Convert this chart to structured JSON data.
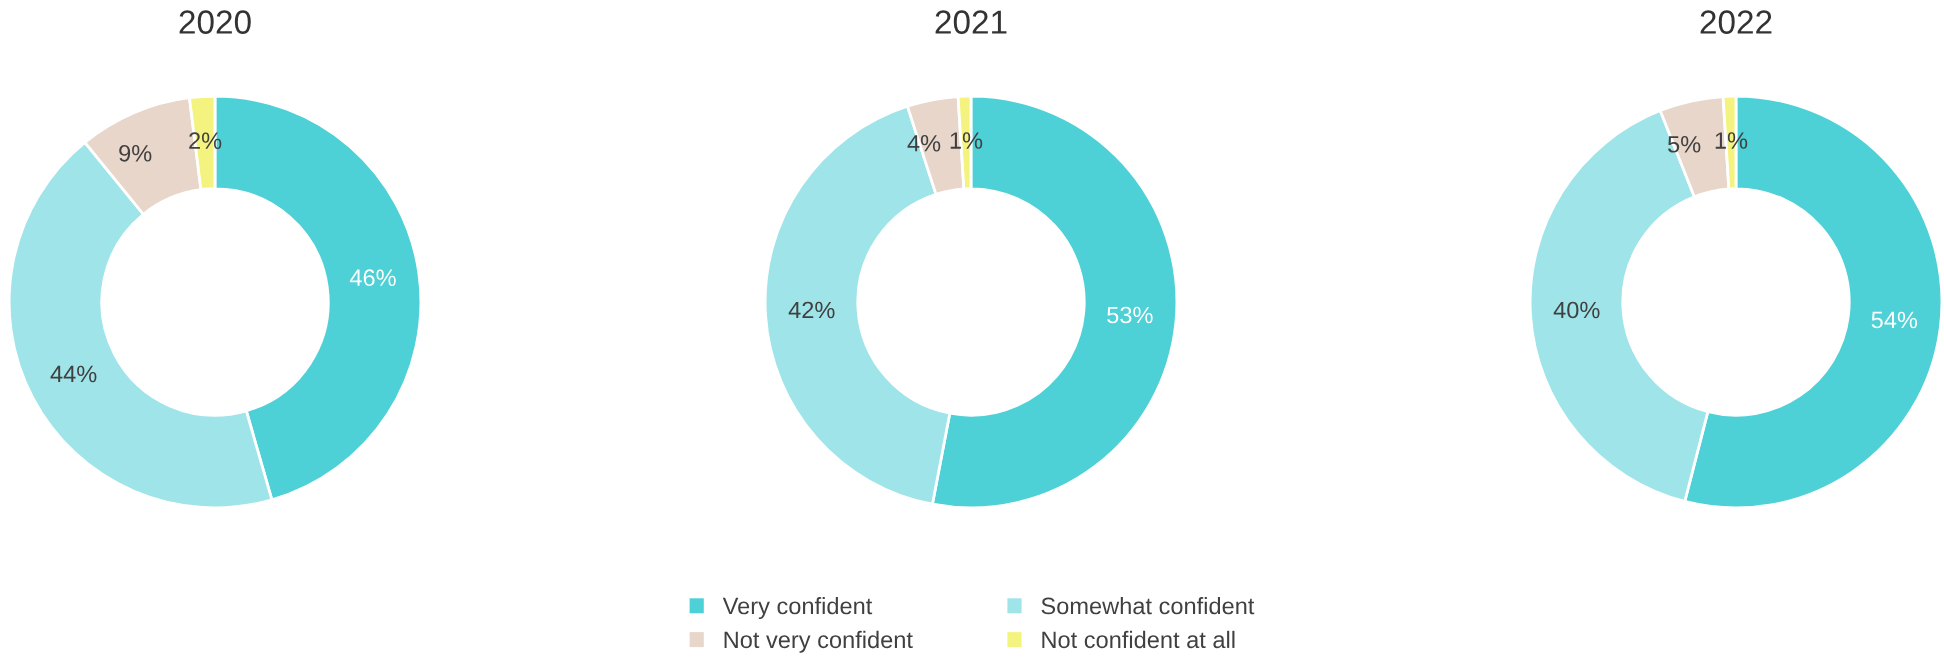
{
  "chart_data": [
    {
      "type": "donut",
      "title": "2020",
      "categories": [
        "Very confident",
        "Somewhat confident",
        "Not very confident",
        "Not confident at all"
      ],
      "values": [
        46,
        44,
        9,
        2
      ],
      "colors": [
        "#4dd0d6",
        "#9ee4e8",
        "#e8d6cb",
        "#f5f37f"
      ],
      "value_labels": [
        "46%",
        "44%",
        "9%",
        "2%"
      ],
      "legend": "bottom"
    },
    {
      "type": "donut",
      "title": "2021",
      "categories": [
        null,
        null,
        null,
        null
      ],
      "values": [
        53,
        42,
        4,
        1
      ],
      "colors": [
        "#4dd0d6",
        "#9ee4e8",
        "#e8d6cb",
        "#f5f37f"
      ],
      "value_labels": [
        "53%",
        "42%",
        "4%",
        "1%"
      ]
    },
    {
      "type": "donut",
      "title": "2022",
      "categories": [
        null,
        null,
        null,
        null
      ],
      "values": [
        54,
        40,
        5,
        1
      ],
      "colors": [
        "#4dd0d6",
        "#9ee4e8",
        "#e8d6cb",
        "#f5f37f"
      ],
      "value_labels": [
        "54%",
        "40%",
        "5%",
        "1%"
      ]
    }
  ]
}
